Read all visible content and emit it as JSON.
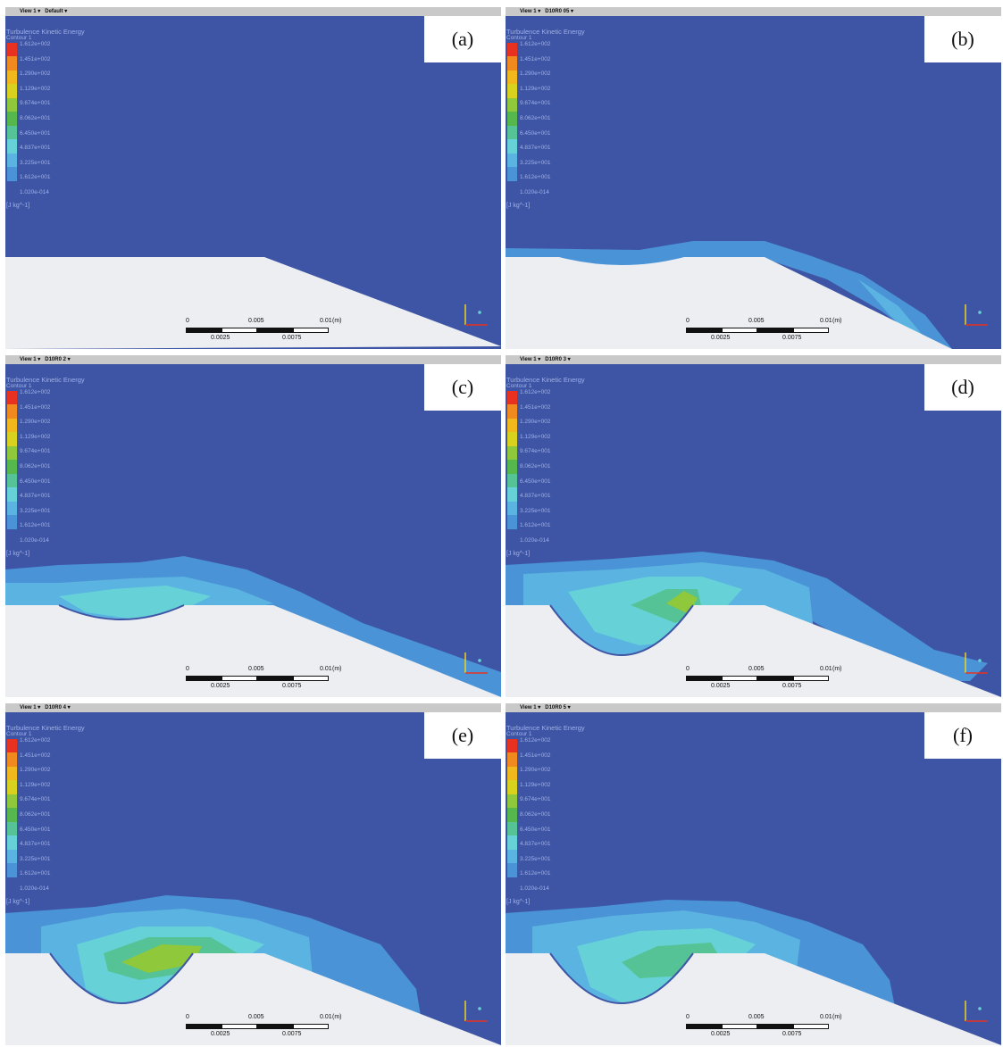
{
  "legend": {
    "title": "Turbulence Kinetic Energy",
    "subtitle": "Contour 1",
    "levels": [
      "1.612e+002",
      "1.451e+002",
      "1.290e+002",
      "1.129e+002",
      "9.674e+001",
      "8.062e+001",
      "6.450e+001",
      "4.837e+001",
      "3.225e+001",
      "1.612e+001",
      "1.020e-014"
    ],
    "unit": "[J kg^-1]",
    "colors": [
      "#e8321f",
      "#f08a1e",
      "#f0b81c",
      "#d8d21e",
      "#8fc83a",
      "#56b84c",
      "#55c396",
      "#66d2d8",
      "#5ab3e0",
      "#4a93d6",
      "#3e55a5"
    ]
  },
  "scale_bar": {
    "top_labels": [
      "0",
      "0.005",
      "0.01"
    ],
    "bottom_labels": [
      "0.0025",
      "0.0075"
    ],
    "unit": "(m)"
  },
  "colors": {
    "background": "#3e55a5",
    "plate": "#eceef2",
    "level_1": "#4a93d6",
    "level_2": "#5ab3e0",
    "level_3": "#66d2d8",
    "level_4": "#55c396",
    "level_5": "#8fc83a"
  },
  "panels": [
    {
      "id": "a",
      "view": "View 1",
      "case": "Default",
      "label": "(a)"
    },
    {
      "id": "b",
      "view": "View 1",
      "case": "D10R0 05",
      "label": "(b)"
    },
    {
      "id": "c",
      "view": "View 1",
      "case": "D10R0 2",
      "label": "(c)"
    },
    {
      "id": "d",
      "view": "View 1",
      "case": "D10R0 3",
      "label": "(d)"
    },
    {
      "id": "e",
      "view": "View 1",
      "case": "D10R0 4",
      "label": "(e)"
    },
    {
      "id": "f",
      "view": "View 1",
      "case": "D10R0 5",
      "label": "(f)"
    }
  ]
}
